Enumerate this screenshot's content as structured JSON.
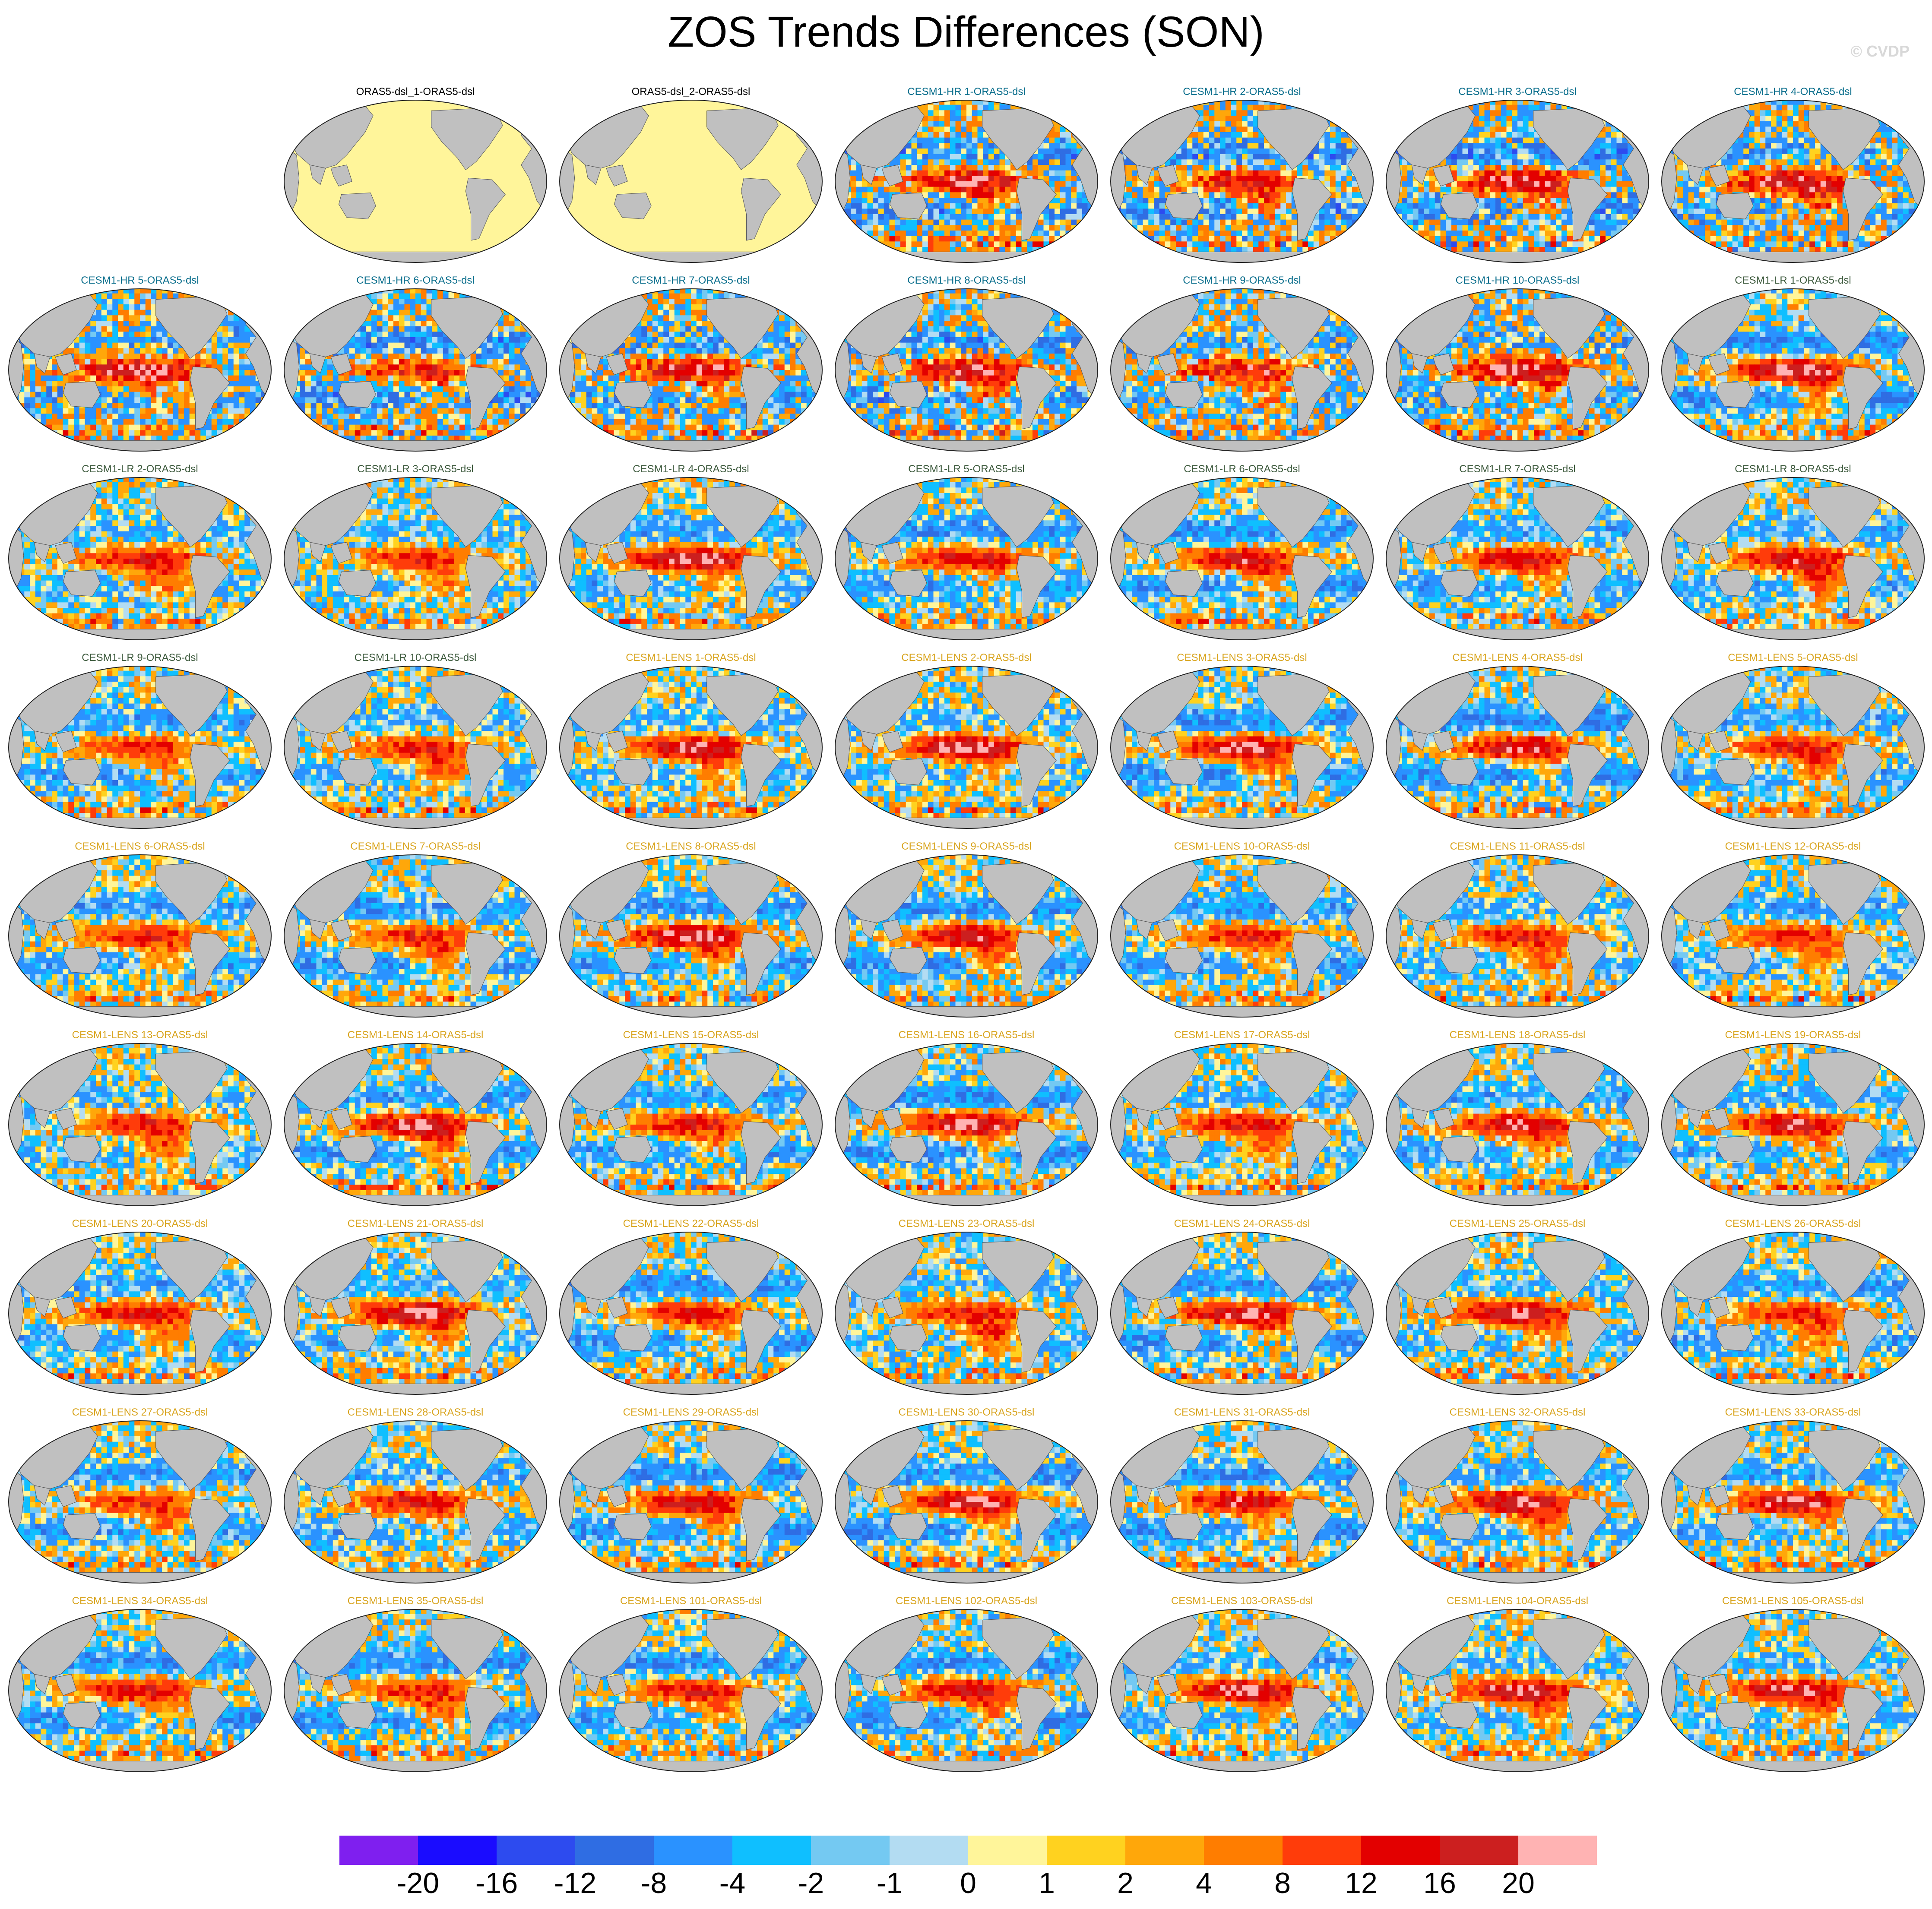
{
  "title": "ZOS Trends Differences (SON)",
  "watermark": "© CVDP",
  "colors": {
    "reference_fill": "#fff59a",
    "land": "#c0c0c0",
    "title_obs": "#000000",
    "title_hr": "#0a6e8c",
    "title_lr": "#3d5a3d",
    "title_lens": "#d9a520"
  },
  "panels": [
    {
      "label": "ORAS5-dsl_1-ORAS5-dsl",
      "group": "obs"
    },
    {
      "label": "ORAS5-dsl_2-ORAS5-dsl",
      "group": "obs"
    },
    {
      "label": "CESM1-HR 1-ORAS5-dsl",
      "group": "hr"
    },
    {
      "label": "CESM1-HR 2-ORAS5-dsl",
      "group": "hr"
    },
    {
      "label": "CESM1-HR 3-ORAS5-dsl",
      "group": "hr"
    },
    {
      "label": "CESM1-HR 4-ORAS5-dsl",
      "group": "hr"
    },
    {
      "label": "CESM1-HR 5-ORAS5-dsl",
      "group": "hr"
    },
    {
      "label": "CESM1-HR 6-ORAS5-dsl",
      "group": "hr"
    },
    {
      "label": "CESM1-HR 7-ORAS5-dsl",
      "group": "hr"
    },
    {
      "label": "CESM1-HR 8-ORAS5-dsl",
      "group": "hr"
    },
    {
      "label": "CESM1-HR 9-ORAS5-dsl",
      "group": "hr"
    },
    {
      "label": "CESM1-HR 10-ORAS5-dsl",
      "group": "hr"
    },
    {
      "label": "CESM1-LR 1-ORAS5-dsl",
      "group": "lr"
    },
    {
      "label": "CESM1-LR 2-ORAS5-dsl",
      "group": "lr"
    },
    {
      "label": "CESM1-LR 3-ORAS5-dsl",
      "group": "lr"
    },
    {
      "label": "CESM1-LR 4-ORAS5-dsl",
      "group": "lr"
    },
    {
      "label": "CESM1-LR 5-ORAS5-dsl",
      "group": "lr"
    },
    {
      "label": "CESM1-LR 6-ORAS5-dsl",
      "group": "lr"
    },
    {
      "label": "CESM1-LR 7-ORAS5-dsl",
      "group": "lr"
    },
    {
      "label": "CESM1-LR 8-ORAS5-dsl",
      "group": "lr"
    },
    {
      "label": "CESM1-LR 9-ORAS5-dsl",
      "group": "lr"
    },
    {
      "label": "CESM1-LR 10-ORAS5-dsl",
      "group": "lr"
    },
    {
      "label": "CESM1-LENS 1-ORAS5-dsl",
      "group": "lens"
    },
    {
      "label": "CESM1-LENS 2-ORAS5-dsl",
      "group": "lens"
    },
    {
      "label": "CESM1-LENS 3-ORAS5-dsl",
      "group": "lens"
    },
    {
      "label": "CESM1-LENS 4-ORAS5-dsl",
      "group": "lens"
    },
    {
      "label": "CESM1-LENS 5-ORAS5-dsl",
      "group": "lens"
    },
    {
      "label": "CESM1-LENS 6-ORAS5-dsl",
      "group": "lens"
    },
    {
      "label": "CESM1-LENS 7-ORAS5-dsl",
      "group": "lens"
    },
    {
      "label": "CESM1-LENS 8-ORAS5-dsl",
      "group": "lens"
    },
    {
      "label": "CESM1-LENS 9-ORAS5-dsl",
      "group": "lens"
    },
    {
      "label": "CESM1-LENS 10-ORAS5-dsl",
      "group": "lens"
    },
    {
      "label": "CESM1-LENS 11-ORAS5-dsl",
      "group": "lens"
    },
    {
      "label": "CESM1-LENS 12-ORAS5-dsl",
      "group": "lens"
    },
    {
      "label": "CESM1-LENS 13-ORAS5-dsl",
      "group": "lens"
    },
    {
      "label": "CESM1-LENS 14-ORAS5-dsl",
      "group": "lens"
    },
    {
      "label": "CESM1-LENS 15-ORAS5-dsl",
      "group": "lens"
    },
    {
      "label": "CESM1-LENS 16-ORAS5-dsl",
      "group": "lens"
    },
    {
      "label": "CESM1-LENS 17-ORAS5-dsl",
      "group": "lens"
    },
    {
      "label": "CESM1-LENS 18-ORAS5-dsl",
      "group": "lens"
    },
    {
      "label": "CESM1-LENS 19-ORAS5-dsl",
      "group": "lens"
    },
    {
      "label": "CESM1-LENS 20-ORAS5-dsl",
      "group": "lens"
    },
    {
      "label": "CESM1-LENS 21-ORAS5-dsl",
      "group": "lens"
    },
    {
      "label": "CESM1-LENS 22-ORAS5-dsl",
      "group": "lens"
    },
    {
      "label": "CESM1-LENS 23-ORAS5-dsl",
      "group": "lens"
    },
    {
      "label": "CESM1-LENS 24-ORAS5-dsl",
      "group": "lens"
    },
    {
      "label": "CESM1-LENS 25-ORAS5-dsl",
      "group": "lens"
    },
    {
      "label": "CESM1-LENS 26-ORAS5-dsl",
      "group": "lens"
    },
    {
      "label": "CESM1-LENS 27-ORAS5-dsl",
      "group": "lens"
    },
    {
      "label": "CESM1-LENS 28-ORAS5-dsl",
      "group": "lens"
    },
    {
      "label": "CESM1-LENS 29-ORAS5-dsl",
      "group": "lens"
    },
    {
      "label": "CESM1-LENS 30-ORAS5-dsl",
      "group": "lens"
    },
    {
      "label": "CESM1-LENS 31-ORAS5-dsl",
      "group": "lens"
    },
    {
      "label": "CESM1-LENS 32-ORAS5-dsl",
      "group": "lens"
    },
    {
      "label": "CESM1-LENS 33-ORAS5-dsl",
      "group": "lens"
    },
    {
      "label": "CESM1-LENS 34-ORAS5-dsl",
      "group": "lens"
    },
    {
      "label": "CESM1-LENS 35-ORAS5-dsl",
      "group": "lens"
    },
    {
      "label": "CESM1-LENS 101-ORAS5-dsl",
      "group": "lens"
    },
    {
      "label": "CESM1-LENS 102-ORAS5-dsl",
      "group": "lens"
    },
    {
      "label": "CESM1-LENS 103-ORAS5-dsl",
      "group": "lens"
    },
    {
      "label": "CESM1-LENS 104-ORAS5-dsl",
      "group": "lens"
    },
    {
      "label": "CESM1-LENS 105-ORAS5-dsl",
      "group": "lens"
    }
  ],
  "chart_data": {
    "type": "heatmap",
    "title": "ZOS Trends Differences (SON)",
    "colorbar": {
      "colors": [
        "#7f1fef",
        "#1a0cff",
        "#2d4bef",
        "#2f6de3",
        "#2a92ff",
        "#0fbfff",
        "#74c9f2",
        "#b3dcf2",
        "#fff59a",
        "#ffd21f",
        "#ffa70a",
        "#ff7d00",
        "#ff3c0a",
        "#e30000",
        "#cc1f1f",
        "#ffb3b3"
      ],
      "tick_labels": [
        "-20",
        "-16",
        "-12",
        "-8",
        "-4",
        "-2",
        "-1",
        "0",
        "1",
        "2",
        "4",
        "8",
        "12",
        "16",
        "20"
      ]
    }
  }
}
